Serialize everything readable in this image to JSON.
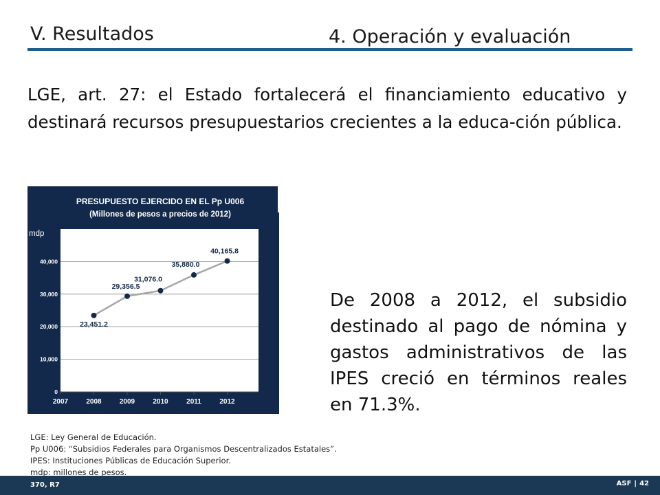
{
  "header": {
    "section": "V. Resultados",
    "subsection": "4. Operación y evaluación"
  },
  "lead_text": "LGE, art. 27: el Estado fortalecerá el financiamiento educativo y destinará recursos presupuestarios crecientes a la educa-ción pública.",
  "side_text": "De 2008 a 2012, el subsidio destinado al pago de nómina y gastos administrativos de las IPES creció en términos reales en 71.3%.",
  "chart_data": {
    "type": "line",
    "title": "PRESUPUESTO EJERCIDO EN EL Pp U006",
    "subtitle": "(Millones de pesos a precios de 2012)",
    "ylabel": "mdp",
    "x": [
      "2007",
      "2008",
      "2009",
      "2010",
      "2011",
      "2012"
    ],
    "series": [
      {
        "values": [
          null,
          23451.2,
          29356.5,
          31076.0,
          35880.0,
          40165.8
        ]
      }
    ],
    "data_labels": [
      "",
      "23,451.2",
      "29,356.5",
      "31,076.0",
      "35,880.0",
      "40,165.8"
    ],
    "yticks": [
      "0",
      "10,000",
      "20,000",
      "30,000",
      "40,000"
    ],
    "ylim": [
      0,
      50000
    ],
    "grid": true,
    "colors": {
      "background": "#13294b",
      "plot": "#ffffff",
      "line": "#a6a6a6",
      "marker": "#13294b",
      "label": "#13294b",
      "grid": "#8c8c8c"
    }
  },
  "notes": [
    "LGE: Ley General de Educación.",
    "Pp U006: “Subsidios Federales para Organismos Descentralizados Estatales”.",
    "IPES: Instituciones Públicas de Educación Superior.",
    "mdp: millones de pesos."
  ],
  "footer": {
    "left": "370, R7",
    "org": "ASF",
    "sep": "|",
    "page": "42"
  }
}
